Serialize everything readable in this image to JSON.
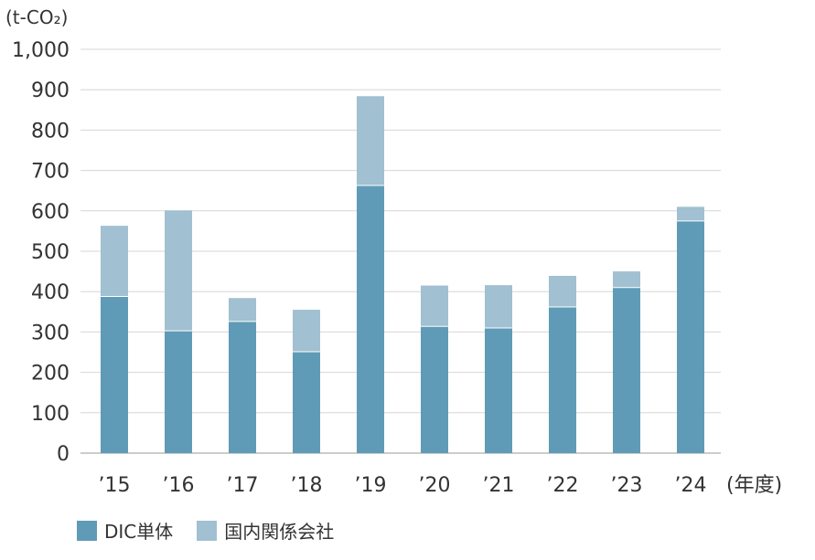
{
  "chart_data": {
    "type": "bar",
    "stacked": true,
    "unit_label": "(t-CO₂)",
    "xunit_label": "(年度)",
    "categories": [
      "’15",
      "’16",
      "’17",
      "’18",
      "’19",
      "’20",
      "’21",
      "’22",
      "’23",
      "’24"
    ],
    "series": [
      {
        "name": "DIC単体",
        "color": "#5f9bb6",
        "values": [
          388,
          303,
          326,
          251,
          663,
          314,
          310,
          362,
          410,
          575
        ]
      },
      {
        "name": "国内関係会社",
        "color": "#a1c0d1",
        "values": [
          175,
          298,
          58,
          104,
          221,
          101,
          106,
          77,
          40,
          35
        ]
      }
    ],
    "yticks": [
      "0",
      "100",
      "200",
      "300",
      "400",
      "500",
      "600",
      "700",
      "800",
      "900",
      "1,000"
    ],
    "ylim": [
      0,
      1000
    ],
    "grid": true,
    "legend_position": "bottom-left"
  }
}
